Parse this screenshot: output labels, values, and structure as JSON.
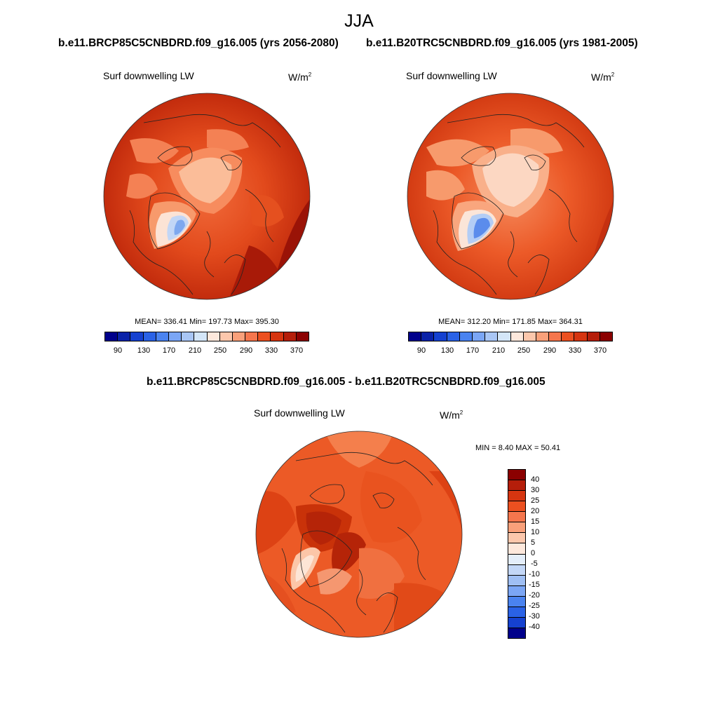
{
  "chart_data": [
    {
      "type": "heatmap",
      "projection": "north polar stereographic",
      "title": "Surf downwelling LW",
      "units_base": "W/m",
      "units_exp": "2",
      "case": "b.e11.BRCP85C5CNBDRD.f09_g16.005 (yrs 2056-2080)",
      "stats": {
        "mean": 336.41,
        "min": 197.73,
        "max": 395.3
      },
      "stats_text": "MEAN= 336.41  Min= 197.73  Max= 395.30",
      "levels": [
        90,
        110,
        130,
        150,
        170,
        190,
        210,
        230,
        250,
        270,
        290,
        310,
        330,
        350,
        370
      ],
      "colorbar_labels": [
        "90",
        "130",
        "170",
        "210",
        "250",
        "290",
        "330",
        "370"
      ]
    },
    {
      "type": "heatmap",
      "projection": "north polar stereographic",
      "title": "Surf downwelling LW",
      "units_base": "W/m",
      "units_exp": "2",
      "case": "b.e11.B20TRC5CNBDRD.f09_g16.005 (yrs 1981-2005)",
      "stats": {
        "mean": 312.2,
        "min": 171.85,
        "max": 364.31
      },
      "stats_text": "MEAN= 312.20  Min= 171.85  Max= 364.31",
      "levels": [
        90,
        110,
        130,
        150,
        170,
        190,
        210,
        230,
        250,
        270,
        290,
        310,
        330,
        350,
        370
      ],
      "colorbar_labels": [
        "90",
        "130",
        "170",
        "210",
        "250",
        "290",
        "330",
        "370"
      ]
    },
    {
      "type": "heatmap",
      "projection": "north polar stereographic",
      "title": "Surf downwelling LW",
      "units_base": "W/m",
      "units_exp": "2",
      "case": "b.e11.BRCP85C5CNBDRD.f09_g16.005 - b.e11.B20TRC5CNBDRD.f09_g16.005",
      "stats": {
        "min": 8.4,
        "max": 50.41
      },
      "stats_text": "MIN =   8.40 MAX =  50.41",
      "levels": [
        -40,
        -30,
        -25,
        -20,
        -15,
        -10,
        -5,
        0,
        5,
        10,
        15,
        20,
        25,
        30,
        40
      ],
      "colorbar_labels": [
        "40",
        "30",
        "25",
        "20",
        "15",
        "10",
        "5",
        "0",
        "-5",
        "-10",
        "-15",
        "-20",
        "-25",
        "-30",
        "-40"
      ]
    }
  ],
  "page": {
    "season": "JJA"
  },
  "colors": {
    "abs_bar": [
      "#00008b",
      "#0a22a8",
      "#1541d0",
      "#2a62e6",
      "#4a83f0",
      "#7ba6f5",
      "#a9c6f5",
      "#d4e6f8",
      "#fde8dc",
      "#fcc7ac",
      "#f9a07a",
      "#f5764d",
      "#ec5020",
      "#d63510",
      "#b51e0a",
      "#8b0000"
    ],
    "diff_bar": [
      "#8b0000",
      "#b51e0a",
      "#d63510",
      "#ec5020",
      "#f5764d",
      "#f9a07a",
      "#fcc7ac",
      "#fde8dc",
      "#e4eefa",
      "#c3d7f7",
      "#9fbff4",
      "#7ba6f5",
      "#4a83f0",
      "#2a62e6",
      "#1541d0",
      "#00008b"
    ]
  }
}
